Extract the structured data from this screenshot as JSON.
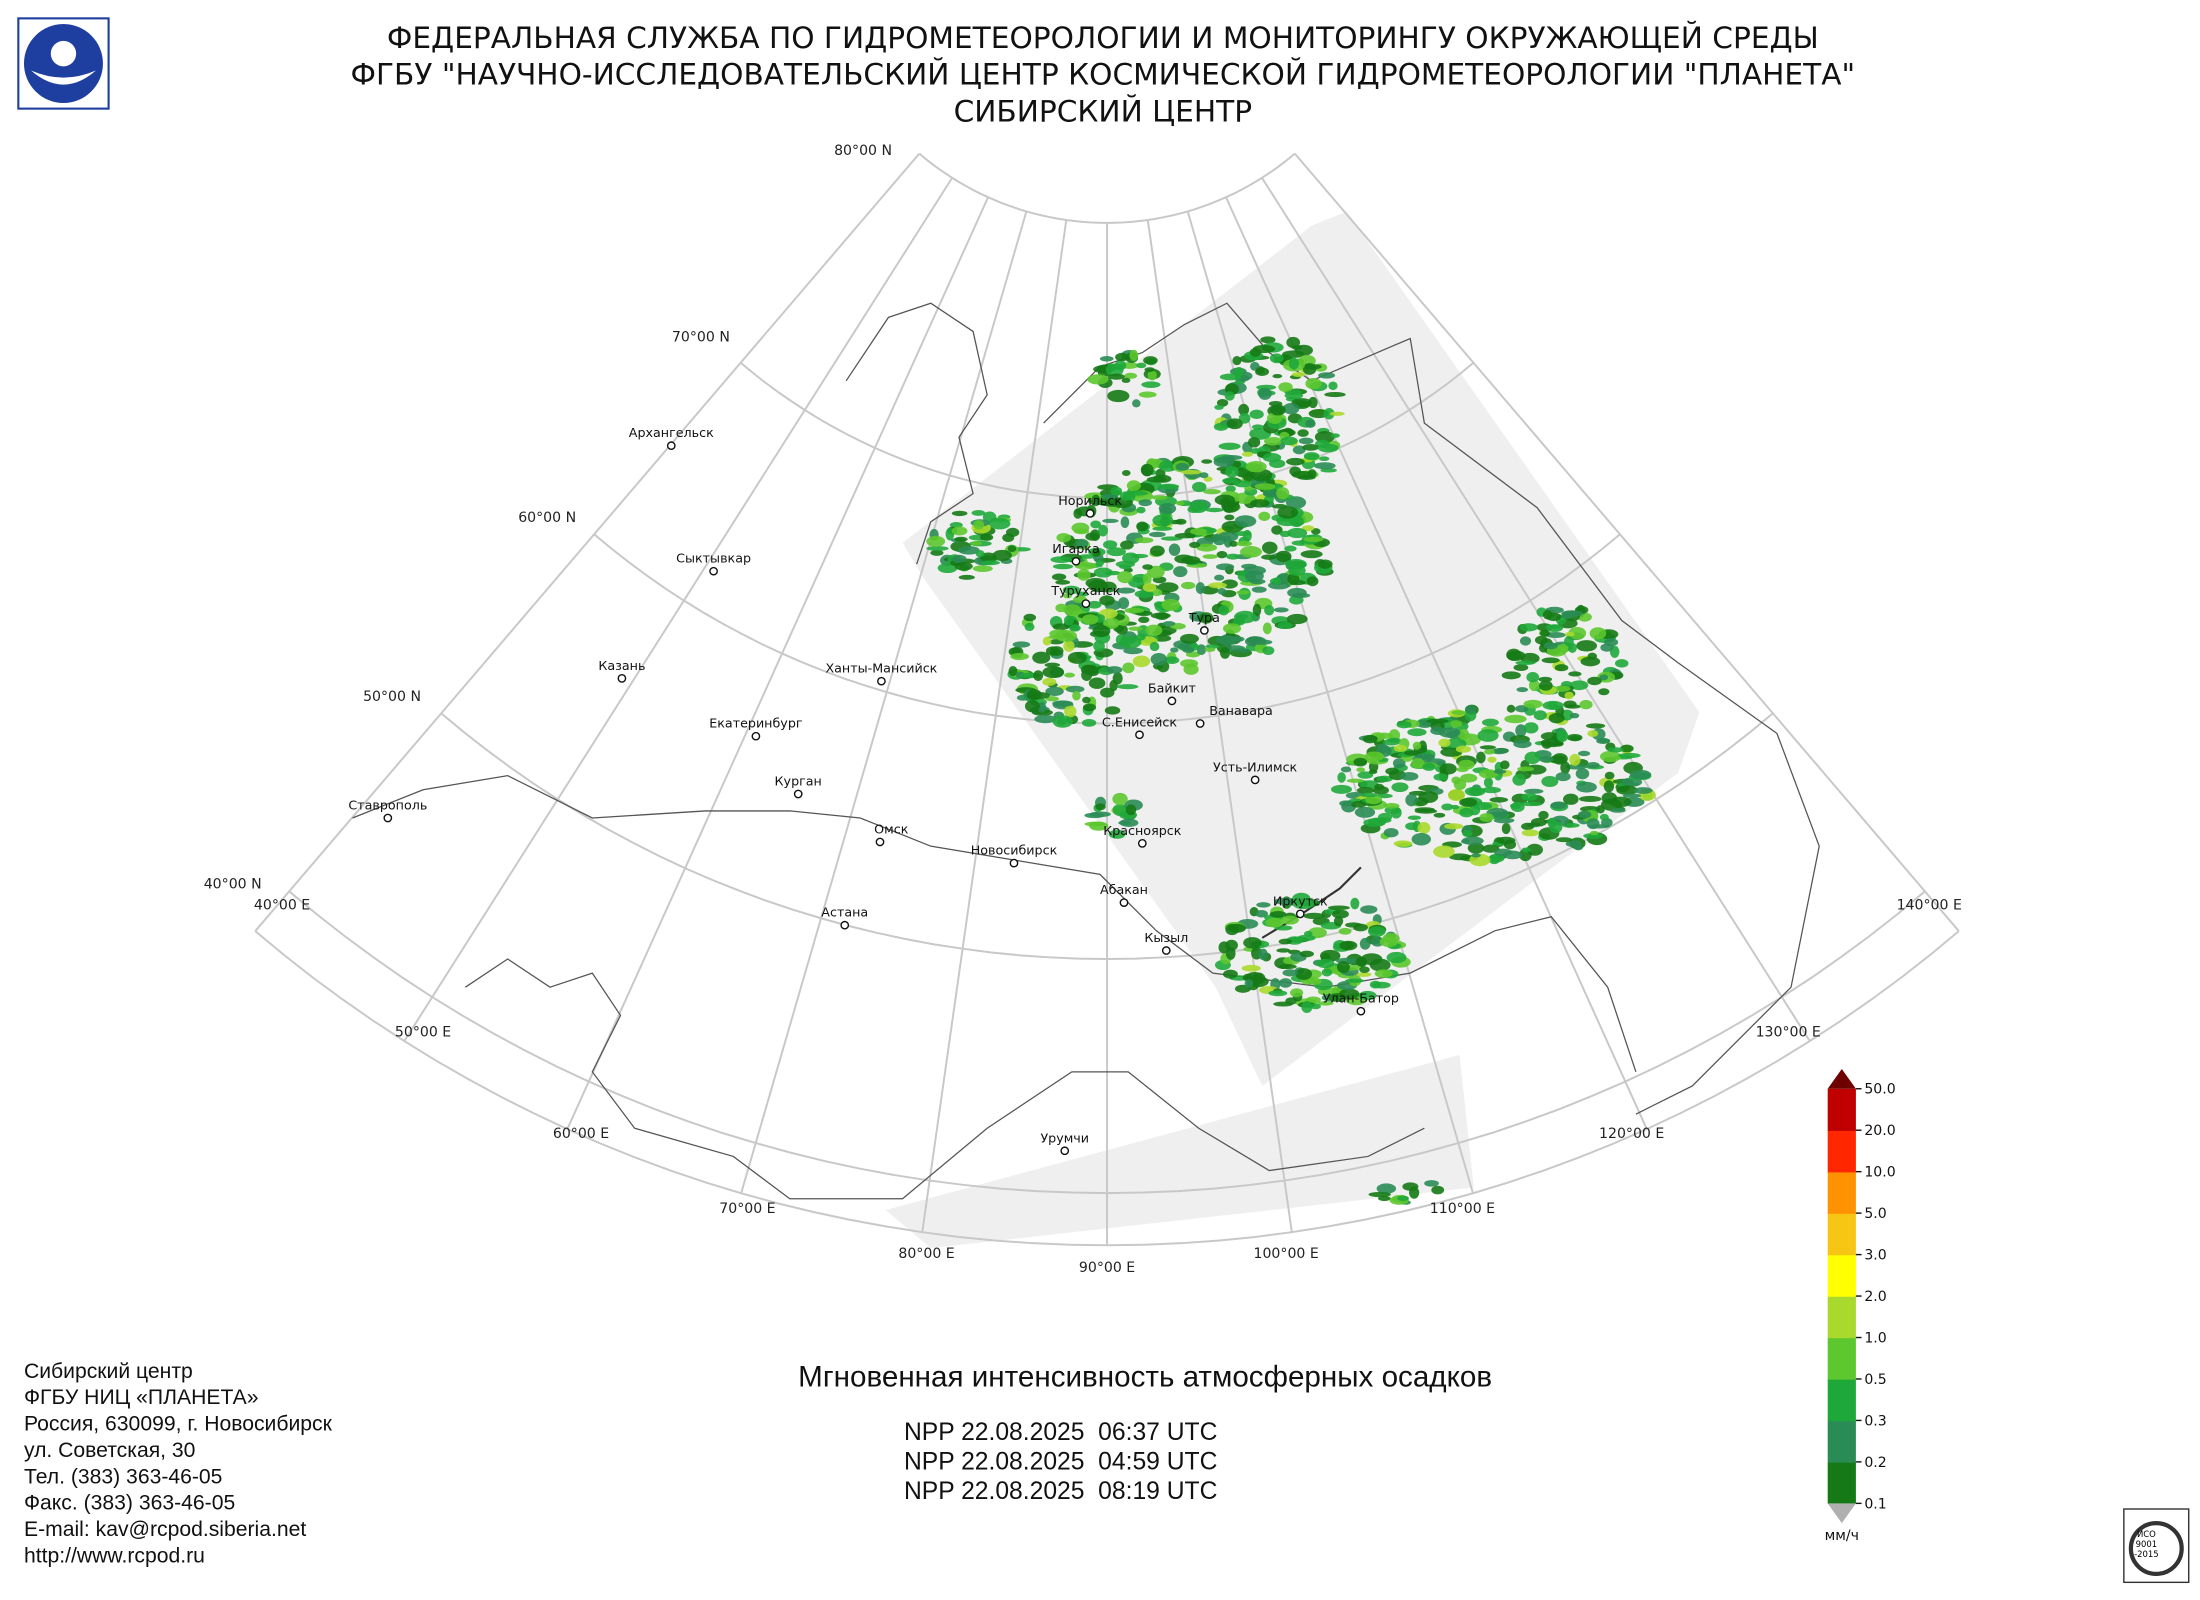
{
  "header": {
    "lines": [
      "ФЕДЕРАЛЬНАЯ СЛУЖБА ПО ГИДРОМЕТЕОРОЛОГИИ И МОНИТОРИНГУ ОКРУЖАЮЩЕЙ СРЕДЫ",
      "ФГБУ \"НАУЧНО-ИССЛЕДОВАТЕЛЬСКИЙ ЦЕНТР КОСМИЧЕСКОЙ ГИДРОМЕТЕОРОЛОГИИ \"ПЛАНЕТА\"",
      "СИБИРСКИЙ ЦЕНТР"
    ]
  },
  "map": {
    "parallels": [
      "80°00 N",
      "70°00 N",
      "60°00 N",
      "50°00 N",
      "40°00 N"
    ],
    "meridians": [
      "40°00 E",
      "50°00 E",
      "60°00 E",
      "70°00 E",
      "80°00 E",
      "90°00 E",
      "100°00 E",
      "110°00 E",
      "120°00 E",
      "130°00 E",
      "140°00 E"
    ],
    "cities": [
      "Архангельск",
      "Сыктывкар",
      "Казань",
      "Ханты-Мансийск",
      "Екатеринбург",
      "Курган",
      "Ставрополь",
      "Омск",
      "Астана",
      "Новосибирск",
      "Норильск",
      "Игарка",
      "Туруханск",
      "Тура",
      "Байкит",
      "Ванавара",
      "С.Енисейск",
      "Усть-Илимск",
      "Красноярск",
      "Абакан",
      "Кызыл",
      "Иркутск",
      "Улан-Батор",
      "Урумчи"
    ]
  },
  "title": "Мгновенная интенсивность атмосферных осадков",
  "passes": [
    "NPP 22.08.2025  06:37 UTC",
    "NPP 22.08.2025  04:59 UTC",
    "NPP 22.08.2025  08:19 UTC"
  ],
  "legend": {
    "unit": "мм/ч",
    "ticks": [
      {
        "value": 0.1,
        "label": "0.1"
      },
      {
        "value": 0.2,
        "label": "0.2"
      },
      {
        "value": 0.3,
        "label": "0.3"
      },
      {
        "value": 0.5,
        "label": "0.5"
      },
      {
        "value": 1,
        "label": "1.0"
      },
      {
        "value": 2,
        "label": "2.0"
      },
      {
        "value": 3,
        "label": "3.0"
      },
      {
        "value": 5,
        "label": "5.0"
      },
      {
        "value": 10,
        "label": "10.0"
      },
      {
        "value": 20,
        "label": "20.0"
      },
      {
        "value": 50,
        "label": "50.0"
      }
    ],
    "colors": [
      "#157a15",
      "#2a8c55",
      "#1fa83a",
      "#5cc72e",
      "#a9d92c",
      "#ffff00",
      "#f7c614",
      "#ff9200",
      "#ff2600",
      "#c00000"
    ],
    "over_color": "#6e0000",
    "under_color": "#b0b0b0"
  },
  "contact": [
    "Сибирский центр",
    "ФГБУ НИЦ «ПЛАНЕТА»",
    "Россия, 630099, г. Новосибирск",
    "ул. Советская, 30",
    "Тел. (383) 363-46-05",
    "Факс. (383) 363-46-05",
    "E-mail: kav@rcpod.siberia.net",
    "http://www.rcpod.ru"
  ],
  "iso_logo": [
    "ИСО",
    "9001",
    "-2015"
  ]
}
